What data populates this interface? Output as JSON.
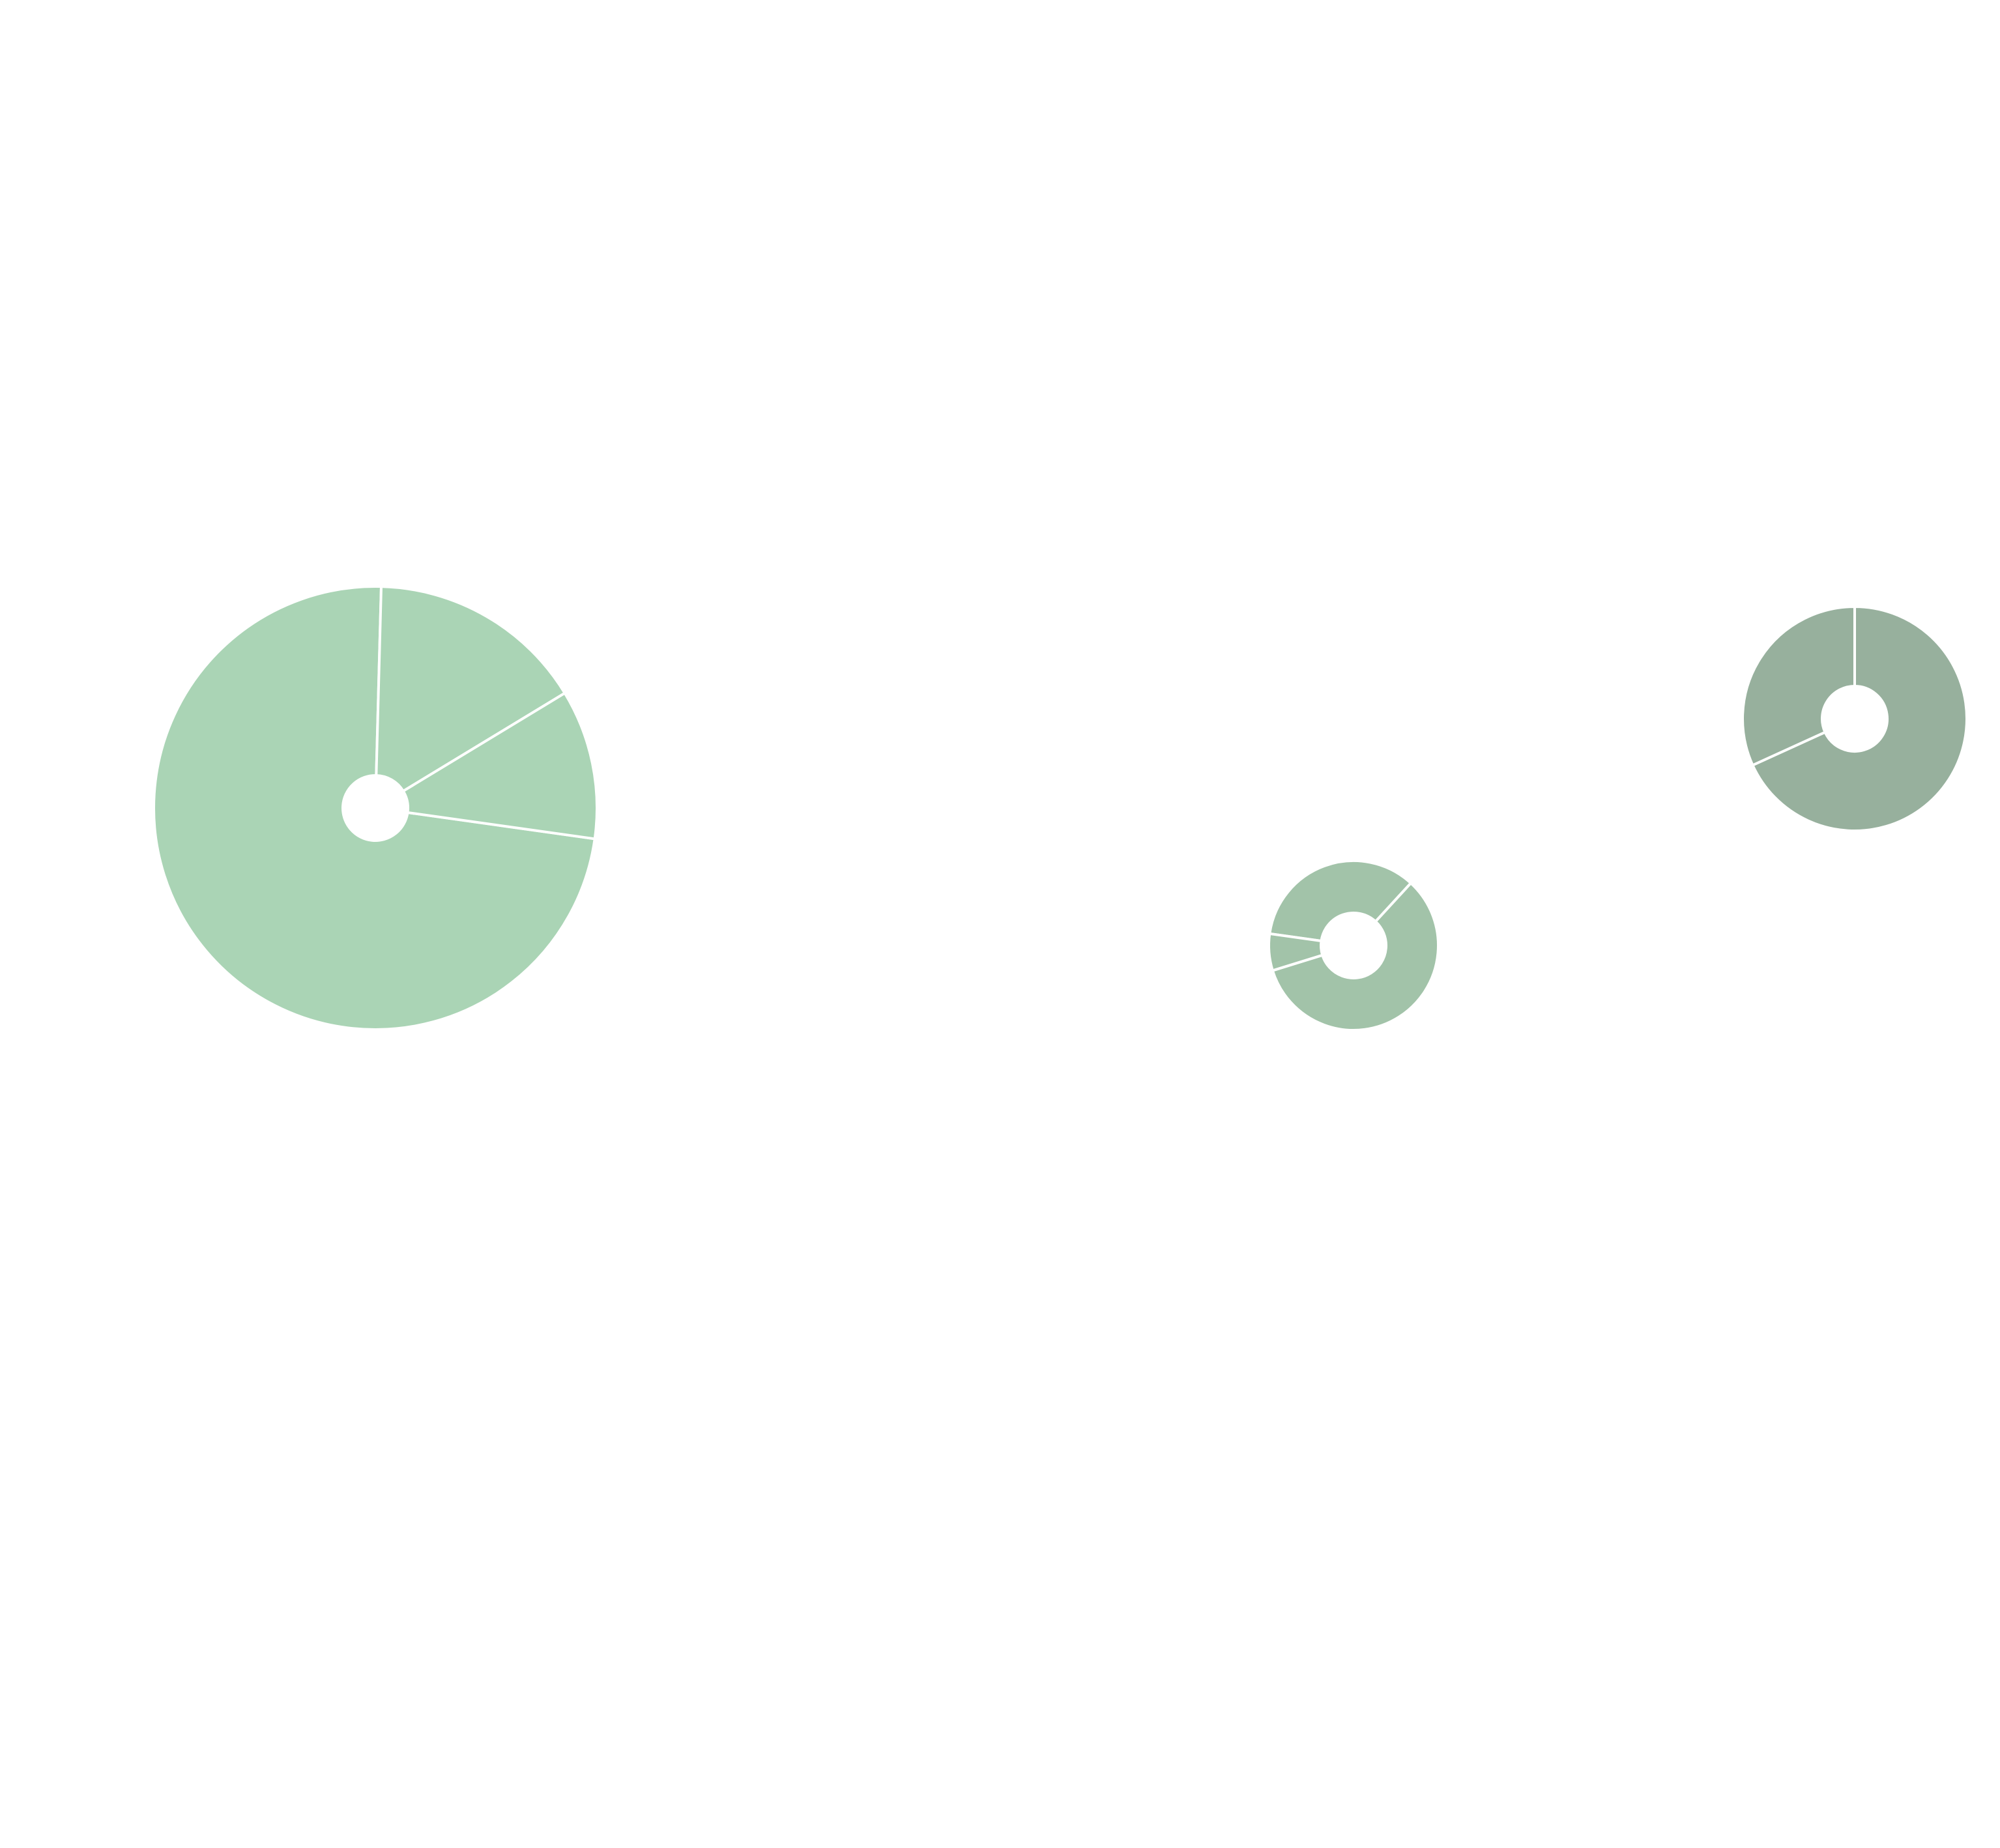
{
  "chart_data": [
    {
      "type": "pie",
      "variant": "donut",
      "color": "#aad4b5",
      "slices": [
        {
          "value": 73.2
        },
        {
          "value": 15.9
        },
        {
          "value": 10.9
        }
      ]
    },
    {
      "type": "pie",
      "variant": "donut",
      "color": "#a2c3a9",
      "slices": [
        {
          "value": 34.6
        },
        {
          "value": 58.4
        },
        {
          "value": 7.0
        }
      ]
    },
    {
      "type": "pie",
      "variant": "donut",
      "color": "#97b09d",
      "slices": [
        {
          "value": 68.2
        },
        {
          "value": 31.8
        }
      ]
    }
  ],
  "colors": {
    "background": "#ffffff",
    "slice_separator": "#ffffff"
  }
}
